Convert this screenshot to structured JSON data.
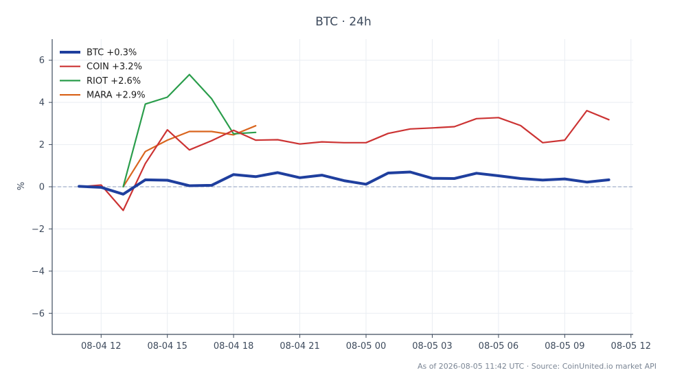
{
  "chart_data": {
    "type": "line",
    "title": "BTC · 24h",
    "xlabel": "",
    "ylabel": "%",
    "ylim": [
      -7,
      7
    ],
    "yticks": [
      6,
      4,
      2,
      0,
      -2,
      -4,
      -6
    ],
    "ytick_labels": [
      "6",
      "4",
      "2",
      "0",
      "−2",
      "−4",
      "−6"
    ],
    "xlim": [
      "2026-08-04 09:47",
      "2026-08-05 12:06"
    ],
    "xticks": [
      "2026-08-04 12:00",
      "2026-08-04 15:00",
      "2026-08-04 18:00",
      "2026-08-04 21:00",
      "2026-08-05 00:00",
      "2026-08-05 03:00",
      "2026-08-05 06:00",
      "2026-08-05 09:00",
      "2026-08-05 12:00"
    ],
    "xtick_labels": [
      "08-04 12",
      "08-04 15",
      "08-04 18",
      "08-04 21",
      "08-05 00",
      "08-05 03",
      "08-05 06",
      "08-05 09",
      "08-05 12"
    ],
    "grid": true,
    "zero_line": true,
    "legend_position": "top-left",
    "series": [
      {
        "name": "BTC +0.3%",
        "color": "#1f3f9e",
        "x": [
          "2026-08-04 11:00",
          "2026-08-04 12:00",
          "2026-08-04 13:00",
          "2026-08-04 14:00",
          "2026-08-04 15:00",
          "2026-08-04 16:00",
          "2026-08-04 17:00",
          "2026-08-04 18:00",
          "2026-08-04 19:00",
          "2026-08-04 20:00",
          "2026-08-04 21:00",
          "2026-08-04 22:00",
          "2026-08-04 23:00",
          "2026-08-05 00:00",
          "2026-08-05 01:00",
          "2026-08-05 02:00",
          "2026-08-05 03:00",
          "2026-08-05 04:00",
          "2026-08-05 05:00",
          "2026-08-05 06:00",
          "2026-08-05 07:00",
          "2026-08-05 08:00",
          "2026-08-05 09:00",
          "2026-08-05 10:00",
          "2026-08-05 11:00"
        ],
        "values": [
          0.02,
          -0.03,
          -0.35,
          0.33,
          0.31,
          0.05,
          0.07,
          0.58,
          0.48,
          0.67,
          0.43,
          0.55,
          0.29,
          0.12,
          0.65,
          0.7,
          0.4,
          0.39,
          0.64,
          0.52,
          0.39,
          0.32,
          0.37,
          0.22,
          0.33
        ]
      },
      {
        "name": "COIN +3.2%",
        "color": "#cc3333",
        "x": [
          "2026-08-04 11:00",
          "2026-08-04 12:00",
          "2026-08-04 13:00",
          "2026-08-04 14:00",
          "2026-08-04 15:00",
          "2026-08-04 16:00",
          "2026-08-04 17:00",
          "2026-08-04 18:00",
          "2026-08-04 19:00",
          "2026-08-04 20:00",
          "2026-08-04 21:00",
          "2026-08-04 22:00",
          "2026-08-04 23:00",
          "2026-08-05 00:00",
          "2026-08-05 01:00",
          "2026-08-05 02:00",
          "2026-08-05 03:00",
          "2026-08-05 04:00",
          "2026-08-05 05:00",
          "2026-08-05 06:00",
          "2026-08-05 07:00",
          "2026-08-05 08:00",
          "2026-08-05 09:00",
          "2026-08-05 10:00",
          "2026-08-05 11:00"
        ],
        "values": [
          0.0,
          0.08,
          -1.12,
          1.1,
          2.7,
          1.75,
          2.18,
          2.68,
          2.21,
          2.23,
          2.03,
          2.13,
          2.09,
          2.09,
          2.53,
          2.74,
          2.79,
          2.85,
          3.23,
          3.28,
          2.9,
          2.09,
          2.21,
          3.61,
          3.18
        ]
      },
      {
        "name": "RIOT +2.6%",
        "color": "#2a9d4b",
        "x": [
          "2026-08-04 13:00",
          "2026-08-04 14:00",
          "2026-08-04 15:00",
          "2026-08-04 16:00",
          "2026-08-04 17:00",
          "2026-08-04 18:00",
          "2026-08-04 19:00"
        ],
        "values": [
          0.0,
          3.92,
          4.25,
          5.32,
          4.18,
          2.51,
          2.58
        ]
      },
      {
        "name": "MARA +2.9%",
        "color": "#d9651e",
        "x": [
          "2026-08-04 13:00",
          "2026-08-04 14:00",
          "2026-08-04 15:00",
          "2026-08-04 16:00",
          "2026-08-04 17:00",
          "2026-08-04 18:00",
          "2026-08-04 19:00"
        ],
        "values": [
          0.0,
          1.67,
          2.21,
          2.62,
          2.62,
          2.46,
          2.89
        ]
      }
    ]
  },
  "footnote": "As of 2026-08-05 11:42 UTC · Source: CoinUnited.io market API"
}
